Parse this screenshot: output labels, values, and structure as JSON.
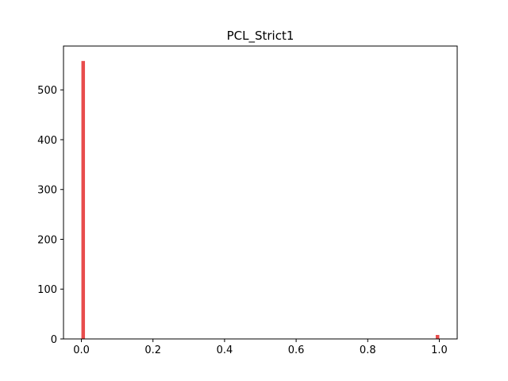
{
  "chart_data": {
    "type": "bar",
    "title": "PCL_Strict1",
    "xlabel": "",
    "ylabel": "",
    "bar_color": "#e84c4c",
    "xlim": [
      -0.05,
      1.05
    ],
    "ylim": [
      0,
      588
    ],
    "x_ticks": [
      0.0,
      0.2,
      0.4,
      0.6,
      0.8,
      1.0
    ],
    "x_tick_labels": [
      "0.0",
      "0.2",
      "0.4",
      "0.6",
      "0.8",
      "1.0"
    ],
    "y_ticks": [
      0,
      100,
      200,
      300,
      400,
      500
    ],
    "y_tick_labels": [
      "0",
      "100",
      "200",
      "300",
      "400",
      "500"
    ],
    "bins": [
      {
        "x0": 0.0,
        "x1": 0.01,
        "count": 558
      },
      {
        "x0": 0.99,
        "x1": 1.0,
        "count": 8
      }
    ],
    "grid": false
  }
}
